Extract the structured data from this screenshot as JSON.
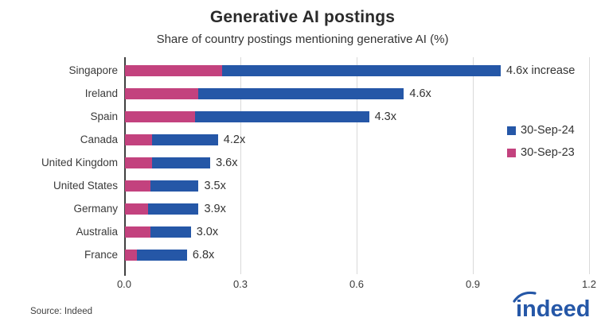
{
  "header": {
    "title": "Generative AI postings",
    "subtitle": "Share of country postings mentioning generative AI (%)"
  },
  "legend": {
    "items": [
      {
        "label": "30-Sep-24",
        "color": "#2557a7"
      },
      {
        "label": "30-Sep-23",
        "color": "#c3427e"
      }
    ]
  },
  "footer": {
    "source": "Source: Indeed",
    "logo_text": "indeed",
    "logo_color": "#2557a7"
  },
  "chart_data": {
    "type": "bar",
    "orientation": "horizontal",
    "title": "Generative AI postings",
    "subtitle": "Share of country postings mentioning generative AI (%)",
    "xlabel": "",
    "ylabel": "",
    "xlim": [
      0.0,
      1.2
    ],
    "x_ticks": [
      0.0,
      0.3,
      0.6,
      0.9,
      1.2
    ],
    "x_tick_labels": [
      "0.0",
      "0.3",
      "0.6",
      "0.9",
      "1.2"
    ],
    "grid": "vertical-light",
    "legend_position": "right",
    "series_meta": [
      {
        "name": "30-Sep-24",
        "color": "#2557a7"
      },
      {
        "name": "30-Sep-23",
        "color": "#c3427e"
      }
    ],
    "rows": [
      {
        "country": "Singapore",
        "sep23": 0.25,
        "sep24": 0.97,
        "annotation": "4.6x increase"
      },
      {
        "country": "Ireland",
        "sep23": 0.19,
        "sep24": 0.72,
        "annotation": "4.6x"
      },
      {
        "country": "Spain",
        "sep23": 0.18,
        "sep24": 0.63,
        "annotation": "4.3x"
      },
      {
        "country": "Canada",
        "sep23": 0.07,
        "sep24": 0.24,
        "annotation": "4.2x"
      },
      {
        "country": "United Kingdom",
        "sep23": 0.07,
        "sep24": 0.22,
        "annotation": "3.6x"
      },
      {
        "country": "United States",
        "sep23": 0.065,
        "sep24": 0.19,
        "annotation": "3.5x"
      },
      {
        "country": "Germany",
        "sep23": 0.06,
        "sep24": 0.19,
        "annotation": "3.9x"
      },
      {
        "country": "Australia",
        "sep23": 0.065,
        "sep24": 0.17,
        "annotation": "3.0x"
      },
      {
        "country": "France",
        "sep23": 0.03,
        "sep24": 0.16,
        "annotation": "6.8x"
      }
    ]
  }
}
